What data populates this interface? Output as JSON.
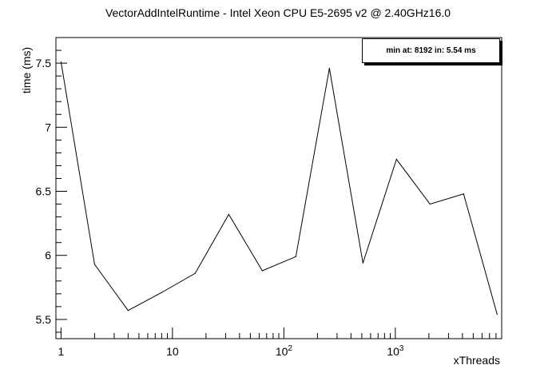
{
  "chart_data": {
    "type": "line",
    "title": "VectorAddIntelRuntime - Intel Xeon CPU E5-2695 v2 @ 2.40GHz16.0",
    "xlabel": "xThreads",
    "ylabel": "time (ms)",
    "xscale": "log",
    "xlim": [
      0.9,
      9000
    ],
    "ylim": [
      5.35,
      7.7
    ],
    "xticks": [
      {
        "value": 1,
        "label": "1"
      },
      {
        "value": 10,
        "label": "10"
      },
      {
        "value": 100,
        "label": "10",
        "exp": "2"
      },
      {
        "value": 1000,
        "label": "10",
        "exp": "3"
      }
    ],
    "yticks": [
      {
        "value": 5.5,
        "label": "5.5"
      },
      {
        "value": 6,
        "label": "6"
      },
      {
        "value": 6.5,
        "label": "6.5"
      },
      {
        "value": 7,
        "label": "7"
      },
      {
        "value": 7.5,
        "label": "7.5"
      }
    ],
    "grid": false,
    "annotation": "min at: 8192 in: 5.54 ms",
    "series": [
      {
        "x": [
          1,
          2,
          4,
          8,
          16,
          32,
          64,
          128,
          256,
          512,
          1024,
          2048,
          4096,
          8192
        ],
        "values": [
          7.51,
          5.93,
          5.57,
          5.71,
          5.86,
          6.32,
          5.88,
          5.99,
          7.46,
          5.94,
          6.75,
          6.4,
          6.48,
          5.54
        ]
      }
    ]
  }
}
